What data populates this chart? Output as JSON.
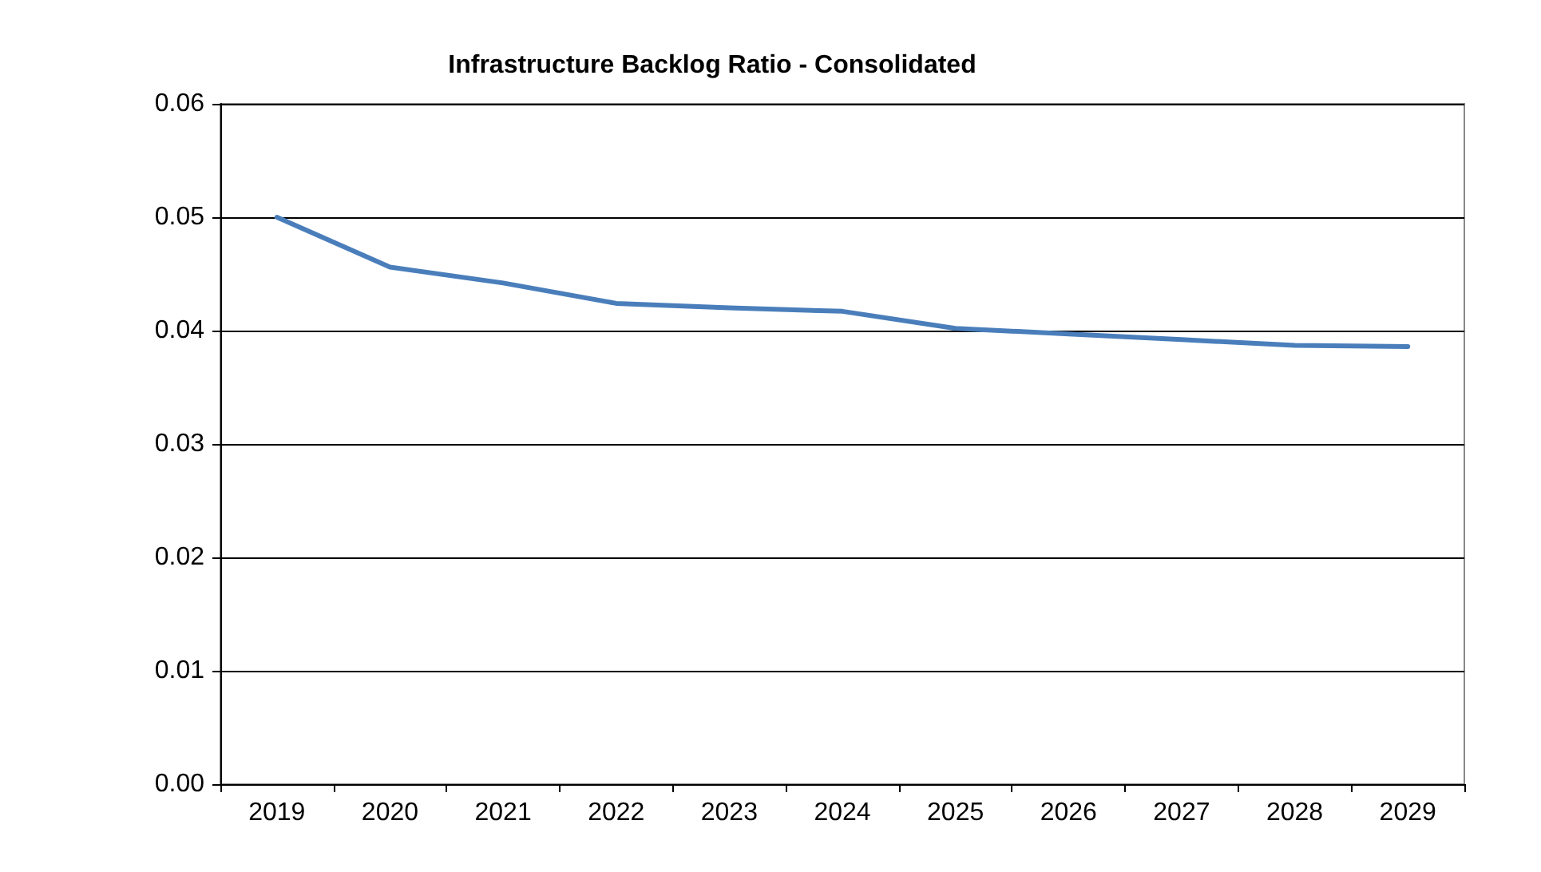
{
  "chart_data": {
    "type": "line",
    "title": "Infrastructure Backlog Ratio - Consolidated",
    "categories": [
      "2019",
      "2020",
      "2021",
      "2022",
      "2023",
      "2024",
      "2025",
      "2026",
      "2027",
      "2028",
      "2029"
    ],
    "series": [
      {
        "color": "#4a7ebb",
        "values": [
          0.05,
          0.0456,
          0.0442,
          0.0424,
          0.042,
          0.0417,
          0.0402,
          0.0397,
          0.0392,
          0.0387,
          0.0386
        ]
      }
    ],
    "ylim": [
      0,
      0.06
    ],
    "yticks": [
      {
        "value": 0,
        "label": "0.00"
      },
      {
        "value": 0.01,
        "label": "0.01"
      },
      {
        "value": 0.02,
        "label": "0.02"
      },
      {
        "value": 0.03,
        "label": "0.03"
      },
      {
        "value": 0.04,
        "label": "0.04"
      },
      {
        "value": 0.05,
        "label": "0.05"
      },
      {
        "value": 0.06,
        "label": "0.06"
      }
    ],
    "grid": "y",
    "marker": "none",
    "line_style": "solid"
  }
}
